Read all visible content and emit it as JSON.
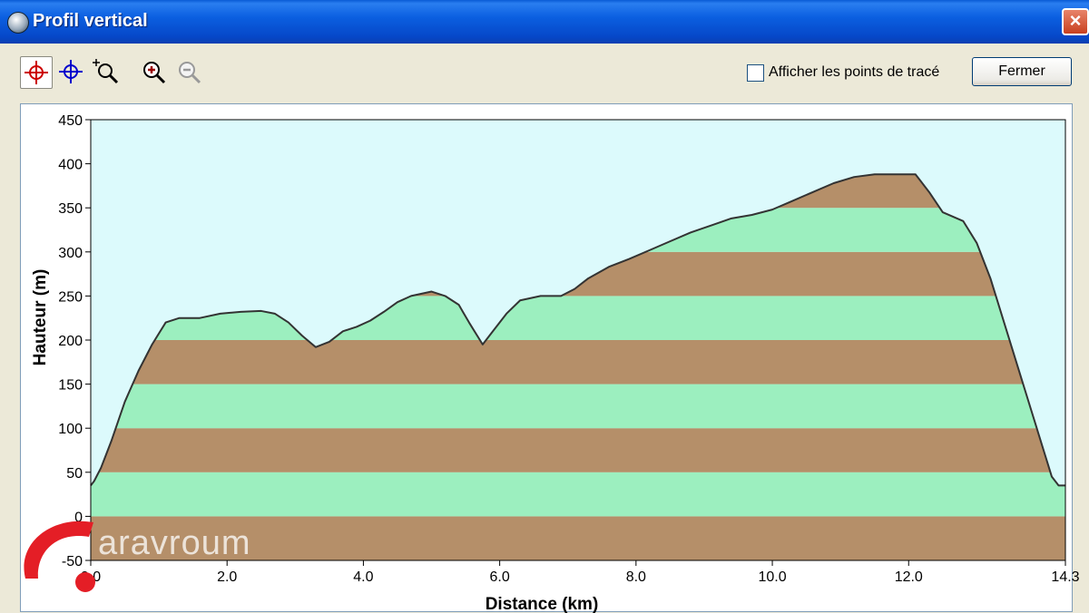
{
  "window": {
    "title": "Profil vertical",
    "close_glyph": "×",
    "icon": "globe-icon"
  },
  "toolbar": {
    "buttons": [
      {
        "name": "red-crosshair-icon",
        "color": "#cc0000",
        "pressed": true
      },
      {
        "name": "blue-crosshair-icon",
        "color": "#0000cc",
        "pressed": false
      },
      {
        "name": "zoom-region-icon",
        "color": "#000000",
        "pressed": false
      },
      {
        "name": "zoom-in-icon",
        "color": "#990000",
        "pressed": false
      },
      {
        "name": "zoom-out-icon",
        "color": "#999999",
        "pressed": false
      }
    ],
    "show_points_label": "Afficher les points de tracé",
    "show_points_checked": false,
    "close_label": "Fermer"
  },
  "watermark": {
    "text": "aravroum",
    "color": "#e41e26"
  },
  "chart_data": {
    "type": "area",
    "xlabel": "Distance  (km)",
    "ylabel": "Hauteur (m)",
    "xlim": [
      0,
      14.3
    ],
    "ylim": [
      -50,
      450
    ],
    "x_ticks": [
      0,
      2,
      4,
      6,
      8,
      10,
      12,
      14.3
    ],
    "x_tick_labels": [
      "0.0",
      "2.0",
      "4.0",
      "6.0",
      "8.0",
      "10.0",
      "12.0",
      "14.3"
    ],
    "y_ticks": [
      450,
      400,
      350,
      300,
      250,
      200,
      150,
      100,
      50,
      0,
      -50
    ],
    "y_tick_labels": [
      "450",
      "400",
      "350",
      "300",
      "250",
      "200",
      "150",
      "100",
      "50",
      "0",
      "-50"
    ],
    "band_interval": 50,
    "colors": {
      "sky": "#dcfafc",
      "band_green": "#9cefbf",
      "band_brown": "#b58f69",
      "line": "#333333"
    },
    "series": [
      {
        "x": [
          0,
          0.05,
          0.15,
          0.3,
          0.5,
          0.7,
          0.9,
          1.1,
          1.3,
          1.6,
          1.9,
          2.2,
          2.5,
          2.7,
          2.9,
          3.1,
          3.3,
          3.5,
          3.7,
          3.9,
          4.1,
          4.3,
          4.5,
          4.7,
          5.0,
          5.2,
          5.4,
          5.55,
          5.75,
          5.9,
          6.1,
          6.3,
          6.6,
          6.9,
          7.1,
          7.3,
          7.6,
          7.9,
          8.2,
          8.5,
          8.8,
          9.1,
          9.4,
          9.7,
          10.0,
          10.3,
          10.6,
          10.9,
          11.2,
          11.5,
          11.8,
          12.1,
          12.3,
          12.5,
          12.8,
          13.0,
          13.2,
          13.4,
          13.6,
          13.8,
          14.0,
          14.1,
          14.2,
          14.3
        ],
        "y": [
          35,
          40,
          55,
          85,
          130,
          165,
          195,
          220,
          225,
          225,
          230,
          232,
          233,
          230,
          220,
          205,
          192,
          198,
          210,
          215,
          222,
          232,
          243,
          250,
          255,
          250,
          240,
          220,
          195,
          210,
          230,
          245,
          250,
          250,
          258,
          270,
          283,
          292,
          302,
          312,
          322,
          330,
          338,
          342,
          348,
          358,
          368,
          378,
          385,
          388,
          388,
          388,
          368,
          345,
          335,
          310,
          270,
          220,
          170,
          120,
          70,
          45,
          35,
          35
        ]
      }
    ]
  }
}
